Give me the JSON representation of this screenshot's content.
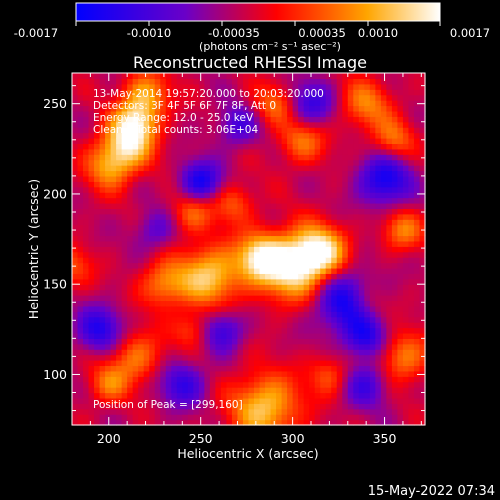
{
  "colorbar": {
    "ticks": [
      "-0.0017",
      "-0.0010",
      "-0.00035",
      "0.00035",
      "0.0010",
      "0.0017"
    ],
    "units": "(photons cm⁻² s⁻¹ asec⁻²)"
  },
  "title": "Reconstructed RHESSI Image",
  "info": {
    "time_range": "13-May-2014 19:57:20.000 to 20:03:20.000",
    "detectors": "Detectors: 3F 4F 5F 6F 7F 8F, Att 0",
    "energy": "Energy Range: 12.0 - 25.0 keV",
    "clean": "Clean    Total counts: 3.06E+04"
  },
  "peak_label": "Position of Peak = [299,160]",
  "timestamp": "15-May-2022 07:34",
  "chart_data": {
    "type": "heatmap",
    "title": "Reconstructed RHESSI Image",
    "xlabel": "Heliocentric X (arcsec)",
    "ylabel": "Heliocentric Y (arcsec)",
    "xlim": [
      180,
      372
    ],
    "ylim": [
      72,
      267
    ],
    "x_ticks": [
      200,
      250,
      300,
      350
    ],
    "y_ticks": [
      100,
      150,
      200,
      250
    ],
    "colorbar_range": [
      -0.0017,
      0.0017
    ],
    "peak": [
      299,
      160
    ],
    "colors": [
      "#0000ff",
      "#6a00c8",
      "#ff0000",
      "#ffa500",
      "#ffffff"
    ],
    "hotspots": [
      {
        "x": 299,
        "y": 160,
        "r": 13,
        "v": 1.0
      },
      {
        "x": 315,
        "y": 168,
        "r": 10,
        "v": 0.95
      },
      {
        "x": 255,
        "y": 155,
        "r": 12,
        "v": 0.85
      },
      {
        "x": 230,
        "y": 150,
        "r": 9,
        "v": 0.6
      },
      {
        "x": 282,
        "y": 165,
        "r": 9,
        "v": 0.8
      },
      {
        "x": 285,
        "y": 82,
        "r": 13,
        "v": 0.85
      },
      {
        "x": 210,
        "y": 228,
        "r": 10,
        "v": 0.85
      },
      {
        "x": 220,
        "y": 255,
        "r": 9,
        "v": 0.7
      },
      {
        "x": 200,
        "y": 215,
        "r": 9,
        "v": 0.6
      },
      {
        "x": 215,
        "y": 240,
        "r": 8,
        "v": 0.65
      },
      {
        "x": 215,
        "y": 110,
        "r": 10,
        "v": 0.55
      },
      {
        "x": 200,
        "y": 95,
        "r": 8,
        "v": 0.5
      },
      {
        "x": 340,
        "y": 250,
        "r": 10,
        "v": 0.55
      },
      {
        "x": 355,
        "y": 230,
        "r": 8,
        "v": 0.5
      },
      {
        "x": 305,
        "y": 230,
        "r": 9,
        "v": 0.55
      },
      {
        "x": 290,
        "y": 250,
        "r": 8,
        "v": 0.5
      },
      {
        "x": 245,
        "y": 190,
        "r": 8,
        "v": 0.5
      },
      {
        "x": 360,
        "y": 110,
        "r": 10,
        "v": 0.6
      },
      {
        "x": 340,
        "y": 140,
        "r": 8,
        "v": 0.45
      },
      {
        "x": 268,
        "y": 195,
        "r": 8,
        "v": 0.45
      },
      {
        "x": 180,
        "y": 160,
        "r": 8,
        "v": 0.4
      },
      {
        "x": 360,
        "y": 180,
        "r": 8,
        "v": 0.55
      },
      {
        "x": 320,
        "y": 100,
        "r": 8,
        "v": 0.45
      },
      {
        "x": 245,
        "y": 125,
        "r": 7,
        "v": 0.4
      }
    ],
    "coldspots": [
      {
        "x": 330,
        "y": 140,
        "r": 12,
        "v": -0.9
      },
      {
        "x": 250,
        "y": 207,
        "r": 8,
        "v": -0.8
      },
      {
        "x": 195,
        "y": 125,
        "r": 9,
        "v": -0.7
      },
      {
        "x": 240,
        "y": 95,
        "r": 9,
        "v": -0.6
      },
      {
        "x": 350,
        "y": 208,
        "r": 10,
        "v": -0.8
      },
      {
        "x": 310,
        "y": 250,
        "r": 9,
        "v": -0.6
      },
      {
        "x": 262,
        "y": 125,
        "r": 8,
        "v": -0.6
      },
      {
        "x": 270,
        "y": 238,
        "r": 8,
        "v": -0.5
      },
      {
        "x": 340,
        "y": 120,
        "r": 8,
        "v": -0.6
      },
      {
        "x": 340,
        "y": 95,
        "r": 9,
        "v": -0.55
      },
      {
        "x": 225,
        "y": 180,
        "r": 8,
        "v": -0.4
      }
    ]
  }
}
